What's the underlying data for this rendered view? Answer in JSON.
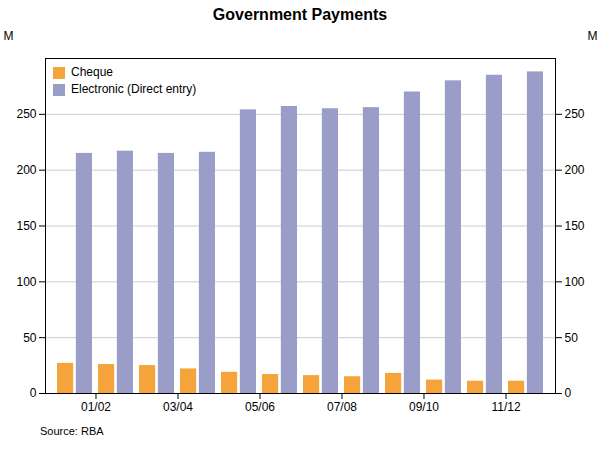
{
  "chart_data": {
    "type": "bar",
    "title": "Government Payments",
    "categories": [
      "01/02",
      null,
      "03/04",
      null,
      "05/06",
      null,
      "07/08",
      null,
      "09/10",
      null,
      "11/12",
      null
    ],
    "series": [
      {
        "name": "Cheque",
        "color": "#f4a43a",
        "values": [
          27,
          26,
          25,
          22,
          19,
          17,
          16,
          15,
          18,
          12,
          11,
          11
        ]
      },
      {
        "name": "Electronic (Direct entry)",
        "color": "#9a9dc8",
        "values": [
          215,
          217,
          215,
          216,
          254,
          257,
          255,
          256,
          270,
          280,
          285,
          288
        ]
      }
    ],
    "ylim": [
      0,
      300
    ],
    "yticks": [
      0,
      50,
      100,
      150,
      200,
      250
    ],
    "ylabel": "M",
    "y2lim": [
      0,
      300
    ],
    "y2ticks": [
      0,
      50,
      100,
      150,
      200,
      250
    ],
    "y2label": "M",
    "grid": true,
    "legend": "upper left",
    "caption": "Source: RBA"
  }
}
